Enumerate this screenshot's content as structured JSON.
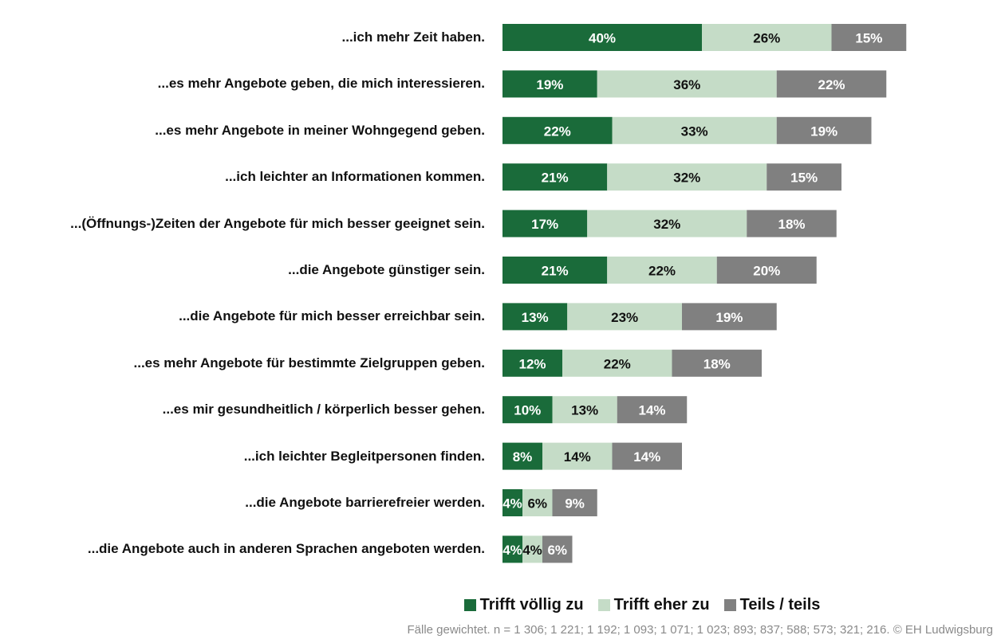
{
  "chart_data": {
    "type": "stacked-barh",
    "categories": [
      "...ich mehr Zeit haben.",
      "...es mehr Angebote geben, die mich interessieren.",
      "...es mehr Angebote in meiner Wohngegend geben.",
      "...ich leichter an Informationen kommen.",
      "...(Öffnungs-)Zeiten der Angebote für mich besser geeignet sein.",
      "...die Angebote günstiger sein.",
      "...die Angebote für mich besser erreichbar sein.",
      "...es mehr Angebote für bestimmte Zielgruppen geben.",
      "...es mir gesundheitlich / körperlich besser gehen.",
      "...ich leichter Begleitpersonen finden.",
      "...die Angebote barrierefreier werden.",
      "...die Angebote auch in anderen Sprachen angeboten werden."
    ],
    "series": [
      {
        "name": "Trifft völlig zu",
        "color": "#1a6b3a",
        "label_color": "#ffffff",
        "values": [
          40,
          19,
          22,
          21,
          17,
          21,
          13,
          12,
          10,
          8,
          4,
          4
        ],
        "value_labels": [
          "40%",
          "19%",
          "22%",
          "21%",
          "17%",
          "21%",
          "13%",
          "12%",
          "10%",
          "8%",
          "4%",
          "4%"
        ]
      },
      {
        "name": "Trifft eher zu",
        "color": "#c5dcc7",
        "label_color": "#111111",
        "values": [
          26,
          36,
          33,
          32,
          32,
          22,
          23,
          22,
          13,
          14,
          6,
          4
        ],
        "value_labels": [
          "26%",
          "36%",
          "33%",
          "32%",
          "32%",
          "22%",
          "23%",
          "22%",
          "13%",
          "14%",
          "6%",
          "4%"
        ]
      },
      {
        "name": "Teils / teils",
        "color": "#808080",
        "label_color": "#ffffff",
        "values": [
          15,
          22,
          19,
          15,
          18,
          20,
          19,
          18,
          14,
          14,
          9,
          6
        ],
        "value_labels": [
          "15%",
          "22%",
          "19%",
          "15%",
          "18%",
          "20%",
          "19%",
          "18%",
          "14%",
          "14%",
          "9%",
          "6%"
        ]
      }
    ],
    "footnote": "Fälle gewichtet. n = 1 306; 1 221; 1 192; 1 093; 1 071; 1 023; 893; 837; 588; 573; 321; 216.  © EH Ludwigsburg"
  }
}
